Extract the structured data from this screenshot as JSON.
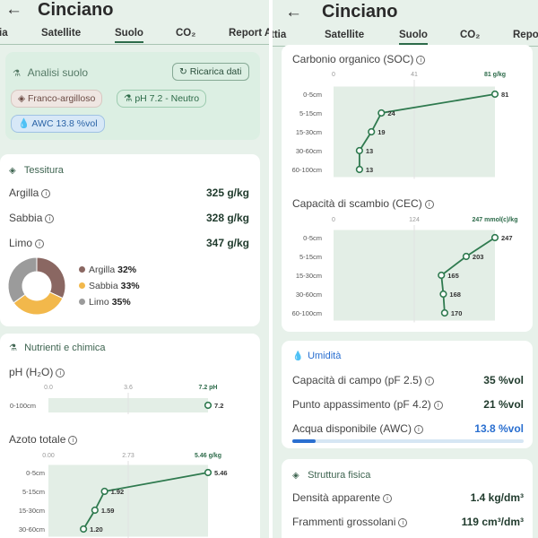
{
  "left": {
    "title": "Cinciano",
    "tabs": [
      "ia",
      "Satellite",
      "Suolo",
      "CO₂",
      "Report A"
    ],
    "active_tab": 2,
    "analisi": {
      "header": "Analisi suolo",
      "reload": "Ricarica dati",
      "chips": [
        "Franco-argilloso",
        "pH 7.2 - Neutro",
        "AWC 13.8 %vol"
      ]
    },
    "tessitura": {
      "header": "Tessitura",
      "rows": [
        {
          "label": "Argilla",
          "value": "325 g/kg"
        },
        {
          "label": "Sabbia",
          "value": "328 g/kg"
        },
        {
          "label": "Limo",
          "value": "347 g/kg"
        }
      ],
      "legend": [
        {
          "name": "Argilla",
          "pct": "32%",
          "color": "#8a6762"
        },
        {
          "name": "Sabbia",
          "pct": "33%",
          "color": "#f2b84b"
        },
        {
          "name": "Limo",
          "pct": "35%",
          "color": "#9b9b9b"
        }
      ],
      "donut": [
        32,
        33,
        35
      ]
    },
    "nutrienti": {
      "header": "Nutrienti e chimica",
      "ph": {
        "label": "pH (H₂O)",
        "ticks": [
          "0.0",
          "3.6"
        ],
        "max_label": "7.2 pH",
        "axis_max": 7.2,
        "depths": [
          "0-100cm"
        ],
        "values": [
          7.2
        ],
        "value_labels": [
          "7.2"
        ]
      },
      "azoto": {
        "label": "Azoto totale",
        "ticks": [
          "0.00",
          "2.73"
        ],
        "max_label": "5.46 g/kg",
        "axis_max": 5.46,
        "depths": [
          "0-5cm",
          "5-15cm",
          "15-30cm",
          "30-60cm"
        ],
        "values": [
          5.46,
          1.92,
          1.59,
          1.2
        ],
        "value_labels": [
          "5.46",
          "1.92",
          "1.59",
          "1.20"
        ]
      }
    }
  },
  "right": {
    "title": "Cinciano",
    "tabs": [
      "ttia",
      "Satellite",
      "Suolo",
      "CO₂",
      "Repo"
    ],
    "active_tab": 2,
    "soc": {
      "label": "Carbonio organico (SOC)",
      "ticks": [
        "0",
        "41"
      ],
      "max_label": "81 g/kg",
      "axis_max": 81,
      "depths": [
        "0-5cm",
        "5-15cm",
        "15-30cm",
        "30-60cm",
        "60-100cm"
      ],
      "values": [
        81,
        24,
        19,
        13,
        13
      ],
      "value_labels": [
        "81",
        "24",
        "19",
        "13",
        "13"
      ]
    },
    "cec": {
      "label": "Capacità di scambio (CEC)",
      "ticks": [
        "0",
        "124"
      ],
      "max_label": "247 mmol(c)/kg",
      "axis_max": 247,
      "depths": [
        "0-5cm",
        "5-15cm",
        "15-30cm",
        "30-60cm",
        "60-100cm"
      ],
      "values": [
        247,
        203,
        165,
        168,
        170
      ],
      "value_labels": [
        "247",
        "203",
        "165",
        "168",
        "170"
      ]
    },
    "umidita": {
      "header": "Umidità",
      "rows": [
        {
          "label": "Capacità di campo (pF 2.5)",
          "value": "35 %vol"
        },
        {
          "label": "Punto appassimento (pF 4.2)",
          "value": "21 %vol"
        },
        {
          "label": "Acqua disponibile (AWC)",
          "value": "13.8 %vol"
        }
      ],
      "awc_fraction": 0.1
    },
    "struttura": {
      "header": "Struttura fisica",
      "rows": [
        {
          "label": "Densità apparente",
          "value": "1.4 kg/dm³"
        },
        {
          "label": "Frammenti grossolani",
          "value": "119 cm³/dm³"
        }
      ]
    }
  },
  "colors": {
    "accent": "#2d6b4a",
    "line": "#2f7a4f",
    "band": "#e3eee6",
    "blue": "#2a6fd0",
    "title": "#2a2a2a"
  }
}
